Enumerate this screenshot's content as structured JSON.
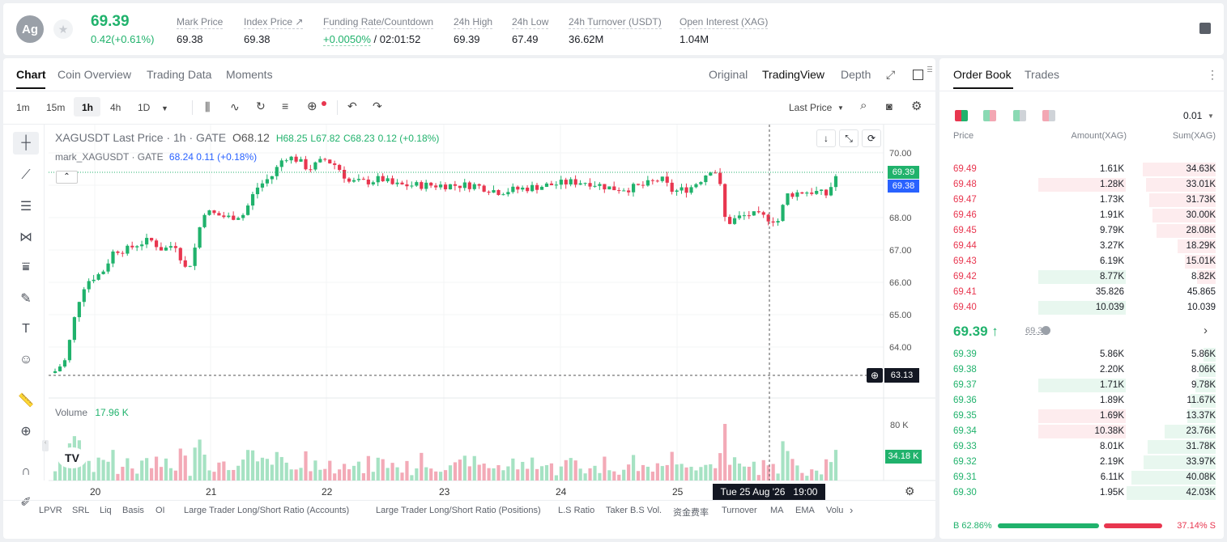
{
  "header": {
    "avatar": "Ag",
    "last_price": "69.39",
    "change": "0.42(+0.61%)",
    "stats": [
      {
        "label": "Mark Price",
        "value": "69.38"
      },
      {
        "label": "Index Price ↗",
        "value": "69.38"
      },
      {
        "label": "Funding Rate/Countdown",
        "value": "+0.0050%",
        "value2": " / 02:01:52"
      },
      {
        "label": "24h High",
        "value": "69.39"
      },
      {
        "label": "24h Low",
        "value": "67.49"
      },
      {
        "label": "24h Turnover (USDT)",
        "value": "36.62M"
      },
      {
        "label": "Open Interest (XAG)",
        "value": "1.04M"
      }
    ]
  },
  "chart_tabs": [
    "Chart",
    "Coin Overview",
    "Trading Data",
    "Moments"
  ],
  "view_tabs": [
    "Original",
    "TradingView",
    "Depth"
  ],
  "intervals": [
    "1m",
    "15m",
    "1h",
    "4h",
    "1D"
  ],
  "price_type": "Last Price",
  "legend": {
    "symbol": "XAGUSDT Last Price · 1h · GATE",
    "o": "O68.12",
    "h": "H68.25",
    "l": "L67.82",
    "c": "C68.23",
    "chg": "0.12 (+0.18%)",
    "mark": "mark_XAGUSDT · GATE",
    "mark_v": "68.24",
    "mark_chg": "0.11 (+0.18%)"
  },
  "volume": {
    "label": "Volume",
    "value": "17.96 K",
    "axis": [
      "80 K",
      "34.18 K"
    ]
  },
  "price_axis": [
    "70.00",
    "69.00",
    "68.00",
    "67.00",
    "66.00",
    "65.00",
    "64.00"
  ],
  "price_tags": {
    "last": "69.39",
    "mark": "69.38",
    "cross": "63.13"
  },
  "x_axis": [
    "20",
    "21",
    "22",
    "23",
    "24",
    "25"
  ],
  "crosshair_time": "Tue 25 Aug '26   19:00",
  "indicators": [
    "LPVR",
    "SRL",
    "Liq",
    "Basis",
    "OI",
    "Large Trader Long/Short Ratio (Accounts)",
    "Large Trader Long/Short Ratio (Positions)",
    "L.S Ratio",
    "Taker B.S Vol.",
    "资金费率",
    "Turnover",
    "MA",
    "EMA",
    "Volu"
  ],
  "orderbook": {
    "tabs": [
      "Order Book",
      "Trades"
    ],
    "precision": "0.01",
    "cols": [
      "Price",
      "Amount(XAG)",
      "Sum(XAG)"
    ],
    "asks": [
      [
        "69.49",
        "1.61K",
        "34.63K"
      ],
      [
        "69.48",
        "1.28K",
        "33.01K"
      ],
      [
        "69.47",
        "1.73K",
        "31.73K"
      ],
      [
        "69.46",
        "1.91K",
        "30.00K"
      ],
      [
        "69.45",
        "9.79K",
        "28.08K"
      ],
      [
        "69.44",
        "3.27K",
        "18.29K"
      ],
      [
        "69.43",
        "6.19K",
        "15.01K"
      ],
      [
        "69.42",
        "8.77K",
        "8.82K"
      ],
      [
        "69.41",
        "35.826",
        "45.865"
      ],
      [
        "69.40",
        "10.039",
        "10.039"
      ]
    ],
    "ask_depth": [
      0.82,
      0.78,
      0.75,
      0.71,
      0.66,
      0.43,
      0.35,
      0.21,
      0.0,
      0.0
    ],
    "mid": "69.39",
    "mid_mark": "69.38",
    "bids": [
      [
        "69.39",
        "5.86K",
        "5.86K"
      ],
      [
        "69.38",
        "2.20K",
        "8.06K"
      ],
      [
        "69.37",
        "1.71K",
        "9.78K"
      ],
      [
        "69.36",
        "1.89K",
        "11.67K"
      ],
      [
        "69.35",
        "1.69K",
        "13.37K"
      ],
      [
        "69.34",
        "10.38K",
        "23.76K"
      ],
      [
        "69.33",
        "8.01K",
        "31.78K"
      ],
      [
        "69.32",
        "2.19K",
        "33.97K"
      ],
      [
        "69.31",
        "6.11K",
        "40.08K"
      ],
      [
        "69.30",
        "1.95K",
        "42.03K"
      ]
    ],
    "bid_depth": [
      0.14,
      0.19,
      0.23,
      0.28,
      0.32,
      0.57,
      0.76,
      0.81,
      0.95,
      1.0
    ],
    "buy": "B 62.86%",
    "sell": "37.14% S",
    "buy_ratio": 0.6286
  },
  "colors": {
    "up": "#20b26c",
    "down": "#e8364f"
  }
}
